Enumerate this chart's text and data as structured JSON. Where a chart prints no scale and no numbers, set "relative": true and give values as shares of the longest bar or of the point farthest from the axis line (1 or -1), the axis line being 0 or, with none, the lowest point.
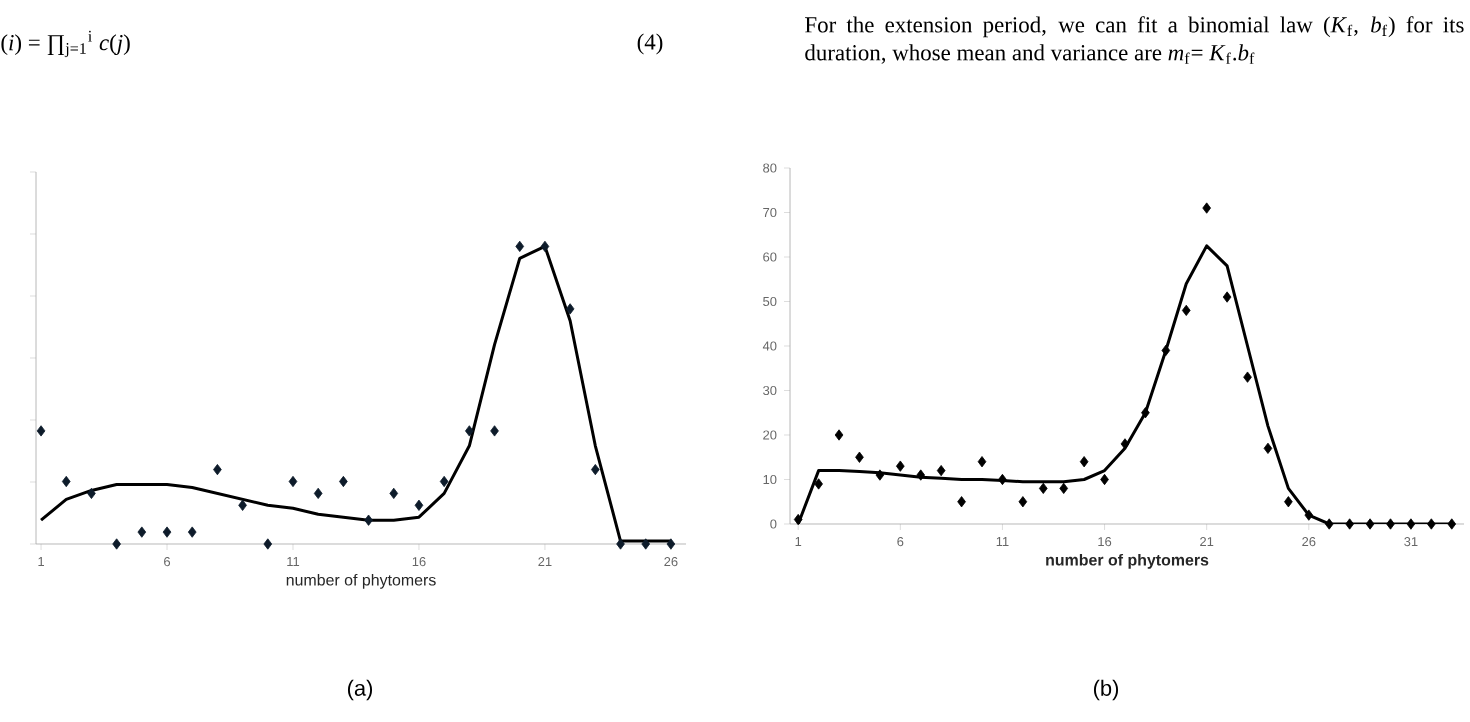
{
  "chart_data": [
    {
      "type": "scatter",
      "relative": true,
      "xlabel": "number of phytomers",
      "x": [
        1,
        2,
        3,
        4,
        5,
        6,
        7,
        8,
        9,
        10,
        11,
        12,
        13,
        14,
        15,
        16,
        17,
        18,
        19,
        20,
        21,
        22,
        23,
        24,
        25,
        26
      ],
      "xlim": [
        0.8,
        26.6
      ],
      "xticks": [
        1,
        6,
        11,
        16,
        21,
        26
      ],
      "tick_labels": "x",
      "series": [
        {
          "marker": "diamond",
          "color": "#0d1b2a",
          "values": [
            0.38,
            0.21,
            0.17,
            0,
            0.04,
            0.04,
            0.04,
            0.25,
            0.13,
            0,
            0.21,
            0.17,
            0.21,
            0.08,
            0.17,
            0.13,
            0.21,
            0.38,
            0.38,
            1,
            1,
            0.79,
            0.25,
            0,
            0,
            0
          ]
        },
        {
          "type": "line",
          "marker": "none",
          "line_style": "solid",
          "color": "#000000",
          "values": [
            0.08,
            0.15,
            0.18,
            0.2,
            0.2,
            0.2,
            0.19,
            0.17,
            0.15,
            0.13,
            0.12,
            0.1,
            0.09,
            0.08,
            0.08,
            0.09,
            0.17,
            0.33,
            0.67,
            0.96,
            1,
            0.75,
            0.33,
            0.01,
            0.01,
            0.01
          ]
        }
      ],
      "annotations": [
        "(*i*) = ∏$_{j=1}$$^{i}$ *c*(*j*)",
        "(4)",
        "(a)"
      ]
    },
    {
      "type": "scatter",
      "xlabel": "number of phytomers",
      "x": [
        1,
        2,
        3,
        4,
        5,
        6,
        7,
        8,
        9,
        10,
        11,
        12,
        13,
        14,
        15,
        16,
        17,
        18,
        19,
        20,
        21,
        22,
        23,
        24,
        25,
        26,
        27,
        28,
        29,
        30,
        31,
        32,
        33
      ],
      "xlim": [
        0.6,
        33.6
      ],
      "xticks": [
        1,
        6,
        11,
        16,
        21,
        26,
        31
      ],
      "ylim": [
        0,
        80
      ],
      "yticks": [
        0,
        10,
        20,
        30,
        40,
        50,
        60,
        70,
        80
      ],
      "series": [
        {
          "marker": "diamond",
          "color": "#000000",
          "values": [
            1,
            9,
            20,
            15,
            11,
            13,
            11,
            12,
            5,
            14,
            10,
            5,
            8,
            8,
            14,
            10,
            18,
            25,
            39,
            48,
            71,
            51,
            33,
            17,
            5,
            2,
            0,
            0,
            0,
            0,
            0,
            0,
            0
          ]
        },
        {
          "type": "line",
          "marker": "none",
          "line_style": "solid",
          "color": "#000000",
          "values": [
            0,
            12,
            12,
            11.8,
            11.5,
            11,
            10.5,
            10.3,
            10,
            10,
            9.8,
            9.5,
            9.5,
            9.5,
            10,
            12,
            17,
            25,
            39,
            54,
            62.5,
            58,
            40,
            22,
            8,
            2,
            0,
            0,
            0,
            0,
            0,
            0,
            0
          ]
        }
      ],
      "annotations": [
        "For the extension period, we can fit a binomial law (*K*$_{f}$, *b*$_{f}$) for its duration, whose mean and variance are *m*$_{f}$= *K*$_{f}$.*b*$_{f}$",
        "(b)"
      ]
    }
  ]
}
